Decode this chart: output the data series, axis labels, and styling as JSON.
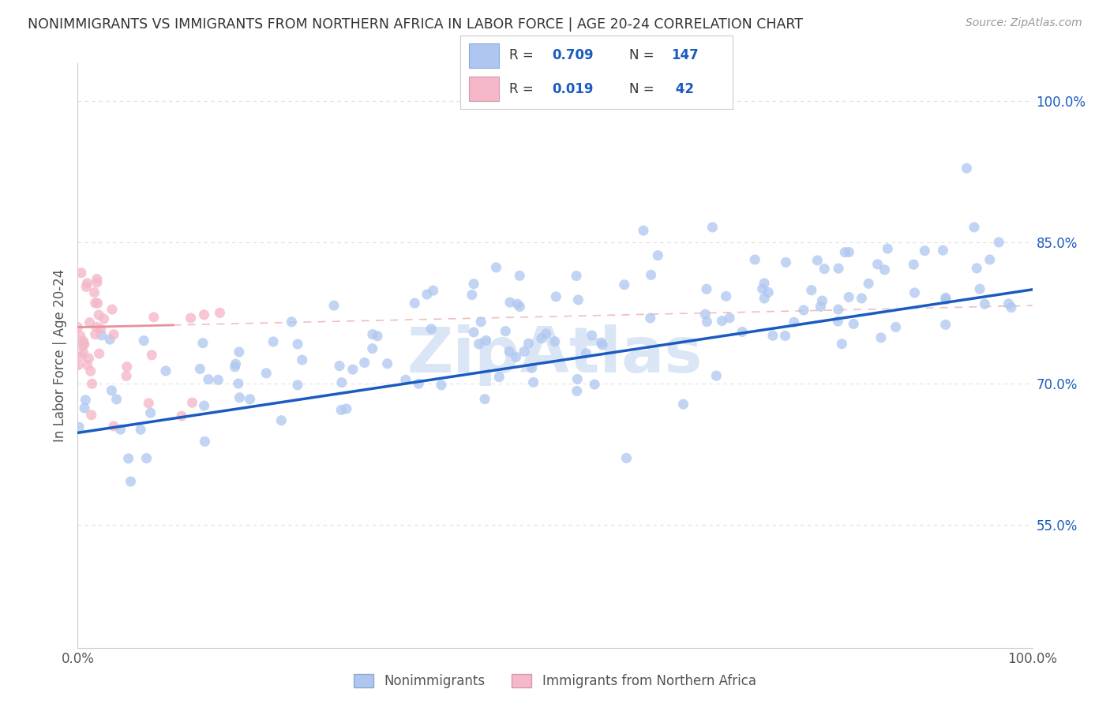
{
  "title": "NONIMMIGRANTS VS IMMIGRANTS FROM NORTHERN AFRICA IN LABOR FORCE | AGE 20-24 CORRELATION CHART",
  "source": "Source: ZipAtlas.com",
  "ylabel": "In Labor Force | Age 20-24",
  "xmin": 0.0,
  "xmax": 1.0,
  "ymin": 0.42,
  "ymax": 1.04,
  "yticks": [
    0.55,
    0.7,
    0.85,
    1.0
  ],
  "ytick_labels": [
    "55.0%",
    "70.0%",
    "85.0%",
    "100.0%"
  ],
  "xtick_labels": [
    "0.0%",
    "100.0%"
  ],
  "xticks": [
    0.0,
    1.0
  ],
  "R_nonimm": 0.709,
  "N_nonimm": 147,
  "R_imm": 0.019,
  "N_imm": 42,
  "nonimm_color": "#aec6f0",
  "imm_color": "#f4b8c8",
  "nonimm_line_color": "#1a5bbf",
  "imm_line_color": "#e8909a",
  "legend_text_color": "#1a5bbf",
  "title_color": "#333333",
  "source_color": "#999999",
  "watermark": "ZipAtlas",
  "watermark_color": "#dae6f5",
  "grid_color": "#e0e0e0",
  "background_color": "#ffffff",
  "nonimm_label": "Nonimmigrants",
  "imm_label": "Immigrants from Northern Africa",
  "blue_line_x0": 0.0,
  "blue_line_y0": 0.648,
  "blue_line_x1": 1.0,
  "blue_line_y1": 0.8,
  "pink_line_x0": 0.0,
  "pink_line_y0": 0.76,
  "pink_line_x1": 1.0,
  "pink_line_y1": 0.783
}
